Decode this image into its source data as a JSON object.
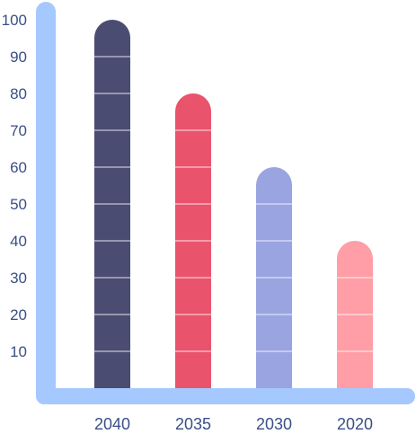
{
  "chart_data": {
    "type": "bar",
    "title": "",
    "xlabel": "",
    "ylabel": "",
    "categories": [
      "2040",
      "2035",
      "2030",
      "2020"
    ],
    "values": [
      100,
      80,
      60,
      40
    ],
    "y_ticks": [
      "10",
      "20",
      "30",
      "40",
      "50",
      "60",
      "70",
      "80",
      "90",
      "100"
    ],
    "ylim": [
      0,
      100
    ],
    "grid": false,
    "legend": "none",
    "axis_color": "#a5c8ff",
    "tick_color": "#3a4f86",
    "bar_colors": [
      "#4a4c72",
      "#e9536b",
      "#9aa4e0",
      "#ff9ea7"
    ],
    "bar_band_lines": true
  }
}
